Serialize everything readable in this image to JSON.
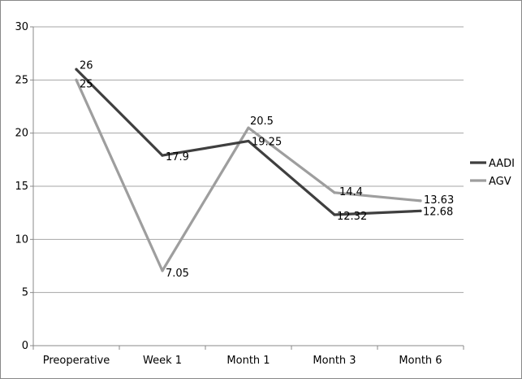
{
  "chart_data": {
    "type": "line",
    "categories": [
      "Preoperative",
      "Week 1",
      "Month 1",
      "Month 3",
      "Month 6"
    ],
    "series": [
      {
        "name": "AADI",
        "values": [
          26,
          17.9,
          19.25,
          12.32,
          12.68
        ],
        "labels": [
          "26",
          "17.9",
          "19.25",
          "12.32",
          "12.68"
        ],
        "color": "#3f3f3f"
      },
      {
        "name": "AGV",
        "values": [
          25,
          7.05,
          20.5,
          14.4,
          13.63
        ],
        "labels": [
          "25",
          "7.05",
          "20.5",
          "14.4",
          "13.63"
        ],
        "color": "#9e9e9e"
      }
    ],
    "ylim": [
      0,
      30
    ],
    "yticks": [
      0,
      5,
      10,
      15,
      20,
      25,
      30
    ],
    "grid": true,
    "legend_position": "right",
    "title": "",
    "xlabel": "",
    "ylabel": ""
  }
}
